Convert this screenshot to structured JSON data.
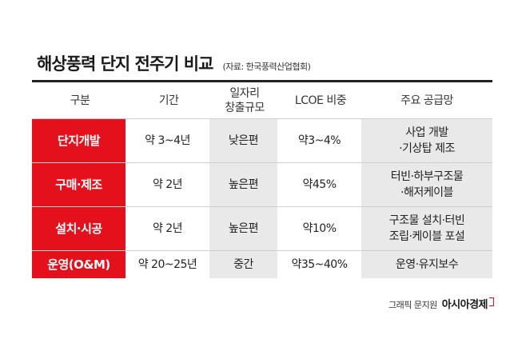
{
  "header": {
    "title": "해상풍력 단지 전주기 비교",
    "source": "(자료: 한국풍력산업협회)"
  },
  "table": {
    "columns": [
      "구분",
      "기간",
      "일자리\n창출규모",
      "LCOE 비중",
      "주요 공급망"
    ],
    "rows": [
      {
        "category": "단지개발",
        "period": "약 3~4년",
        "jobs": "낮은편",
        "lcoe": "약3~4%",
        "supply": "사업 개발\n·기상탑 제조"
      },
      {
        "category": "구매·제조",
        "period": "약 2년",
        "jobs": "높은편",
        "lcoe": "약45%",
        "supply": "터빈·하부구조물\n·해저케이블"
      },
      {
        "category": "설치·시공",
        "period": "약 2년",
        "jobs": "높은편",
        "lcoe": "약10%",
        "supply": "구조물 설치·터빈\n조립·케이블 포설"
      },
      {
        "category": "운영(O&M)",
        "period": "약 20~25년",
        "jobs": "중간",
        "lcoe": "약35~40%",
        "supply": "운영·유지보수"
      }
    ]
  },
  "footer": {
    "credit": "그래픽 문지원",
    "brand": "아시아경제"
  },
  "colors": {
    "accent": "#e4101c",
    "shaded": "#e9e9e9"
  }
}
